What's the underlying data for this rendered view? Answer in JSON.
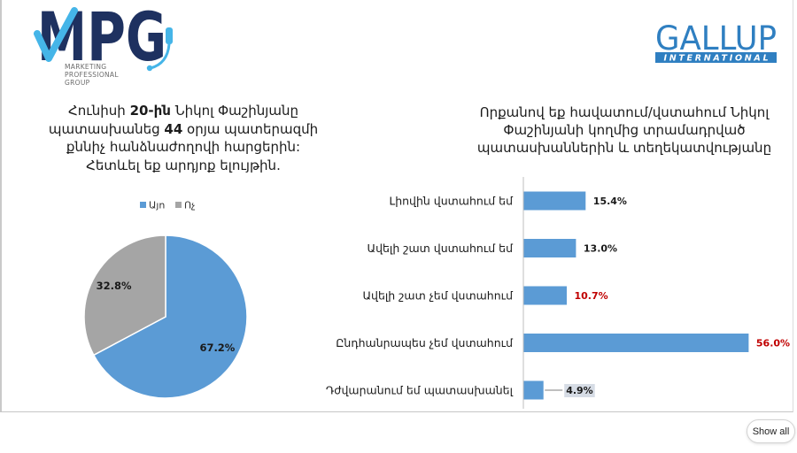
{
  "header": {
    "mpg_logo": {
      "letters": [
        "M",
        "P",
        "G"
      ],
      "tagline": [
        "MARKETING",
        "PROFESSIONAL",
        "GROUP"
      ],
      "colors": {
        "navy": "#1e3160",
        "cyan": "#45b5e8",
        "tagline": "#6b6b6b"
      }
    },
    "gallup_logo": {
      "name": "GALLUP",
      "subtitle": "INTERNATIONAL",
      "color": "#2f7fc1",
      "subtitle_color": "#ffffff"
    }
  },
  "chart_data": [
    {
      "type": "pie",
      "title_lines": [
        [
          "Հունիսի ",
          "20-ին",
          " Նիկոլ Փաշինյանը"
        ],
        [
          "պատասխանեց ",
          "44",
          " օրյա պատերազմի"
        ],
        [
          "քննիչ հանձնաժողովի հարցերին:"
        ],
        [
          "Հետևել եք արդյոք ելույթին."
        ]
      ],
      "categories": [
        "Այո",
        "Ոչ"
      ],
      "values": [
        67.2,
        32.8
      ],
      "value_labels": [
        "67.2%",
        "32.8%"
      ],
      "colors": [
        "#5b9bd5",
        "#a5a5a5"
      ],
      "legend_position": "top"
    },
    {
      "type": "bar",
      "orientation": "horizontal",
      "title_lines": [
        "Որքանով եք հավատում/վստահում Նիկոլ",
        "Փաշինյանի կողմից տրամադրված",
        "պատասխաններին և տեղեկատվությանը"
      ],
      "categories": [
        "Լիովին վստահում եմ",
        "Ավելի շատ վստահում եմ",
        "Ավելի շատ չեմ վստահում",
        "Ընդհանրապես չեմ վստահում",
        "Դժվարանում եմ պատասխանել"
      ],
      "values": [
        15.4,
        13.0,
        10.7,
        56.0,
        4.9
      ],
      "value_labels": [
        "15.4%",
        "13.0%",
        "10.7%",
        "56.0%",
        "4.9%"
      ],
      "bar_color": "#5b9bd5",
      "label_colors": [
        "#1a1a1a",
        "#1a1a1a",
        "#c00000",
        "#c00000",
        "#1a1a1a"
      ],
      "label_highlight": [
        null,
        null,
        null,
        null,
        "#d6dce5"
      ],
      "leader_lines": [
        false,
        false,
        false,
        false,
        true
      ],
      "xlim": [
        0,
        60
      ],
      "grid": false
    }
  ],
  "footer": {
    "show_all_label": "Show all"
  }
}
